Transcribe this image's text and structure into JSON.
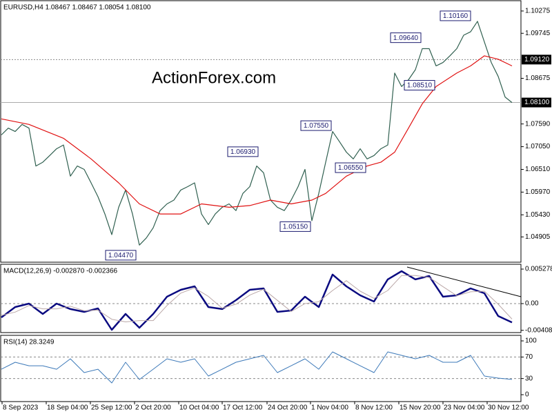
{
  "chart_data": [
    {
      "type": "line",
      "title": "EURUSD,H4  1.08467 1.08467 1.08054 1.08100",
      "watermark": "ActionForex.com",
      "xlim": [
        -0.2,
        75.3
      ],
      "ylim": [
        1.04304,
        1.1052
      ],
      "yticks": [
        1.10275,
        1.09745,
        1.08675,
        {
          "value": 1.0759,
          "label": "1.07590"
        },
        {
          "value": 1.0705,
          "label": "1.07050"
        },
        {
          "value": 1.0651,
          "label": "1.06510"
        },
        {
          "value": 1.0597,
          "label": "1.05970"
        },
        {
          "value": 1.0543,
          "label": "1.05430"
        },
        1.04905
      ],
      "levels": [
        {
          "value": 1.0912,
          "label": "1.09120",
          "style": "dotted"
        },
        {
          "value": 1.081,
          "label": "1.08100",
          "style": "solid"
        }
      ],
      "series": [
        {
          "color": "#2f5f4f",
          "values": [
            1.0733,
            1.0749,
            1.0741,
            1.0758,
            1.0749,
            1.0659,
            1.0668,
            1.0684,
            1.07,
            1.0709,
            1.0635,
            1.0659,
            1.0651,
            1.0619,
            1.0586,
            1.0545,
            1.0496,
            1.0561,
            1.0602,
            1.0545,
            1.0471,
            1.0488,
            1.0512,
            1.0553,
            1.0569,
            1.0578,
            1.0602,
            1.061,
            1.0619,
            1.0545,
            1.052,
            1.0545,
            1.0561,
            1.0569,
            1.0553,
            1.0594,
            1.061,
            1.0659,
            1.0643,
            1.0578,
            1.0561,
            1.0553,
            1.0578,
            1.061,
            1.0651,
            1.0529,
            1.0594,
            1.0668,
            1.0741,
            1.0717,
            1.0692,
            1.0676,
            1.07,
            1.0676,
            1.0684,
            1.07,
            1.0709,
            1.088,
            1.0848,
            1.0864,
            1.0888,
            1.0938,
            1.0938,
            1.0897,
            1.0905,
            1.0921,
            1.0938,
            1.097,
            1.0978,
            1.1003,
            1.0954,
            1.0905,
            1.0872,
            1.0823,
            1.081
          ]
        },
        {
          "color": "#e01010",
          "x": [
            0,
            4,
            9,
            13,
            17,
            20,
            23,
            26,
            29,
            33,
            36,
            39,
            42,
            45,
            47,
            50,
            53,
            55,
            57,
            59,
            61,
            63,
            66,
            68,
            70,
            72,
            74
          ],
          "values": [
            1.0771,
            1.0758,
            1.0725,
            1.0676,
            1.0619,
            1.0569,
            1.0545,
            1.0545,
            1.0569,
            1.0561,
            1.0565,
            1.0578,
            1.0569,
            1.0578,
            1.0594,
            1.0635,
            1.0659,
            1.0668,
            1.0692,
            1.0749,
            1.0807,
            1.0848,
            1.088,
            1.0897,
            1.0921,
            1.0913,
            1.0897
          ]
        }
      ],
      "annotations": [
        {
          "x": 17.3,
          "value": 1.0447,
          "label": "1.04470"
        },
        {
          "x": 35,
          "value": 1.0693,
          "label": "1.06930"
        },
        {
          "x": 42.6,
          "value": 1.0515,
          "label": "1.05150"
        },
        {
          "x": 45.6,
          "value": 1.0755,
          "label": "1.07550"
        },
        {
          "x": 50.6,
          "value": 1.0655,
          "label": "1.06550"
        },
        {
          "x": 60.6,
          "value": 1.0851,
          "label": "1.08510"
        },
        {
          "x": 58.6,
          "value": 1.0964,
          "label": "1.09640"
        },
        {
          "x": 65.8,
          "value": 1.1016,
          "label": "1.10160"
        }
      ]
    },
    {
      "type": "line",
      "title": "MACD(12,26,9) -0.002870 -0.002366",
      "xlim": [
        -0.2,
        75.3
      ],
      "ylim": [
        -0.004435,
        0.006017
      ],
      "yticks": [
        0.005278,
        {
          "value": 0,
          "label": "0.00"
        },
        -0.004087
      ],
      "levels": [
        {
          "value": 0,
          "style": "dashed"
        }
      ],
      "series": [
        {
          "color": "#0a0a80",
          "width": 2.5,
          "x": [
            0,
            2,
            4,
            6,
            8,
            10,
            12,
            14,
            16,
            18,
            20,
            22,
            24,
            26,
            28,
            30,
            32,
            34,
            36,
            38,
            40,
            42,
            44,
            46,
            48,
            50,
            52,
            54,
            56,
            58,
            60,
            62,
            64,
            66,
            68,
            70,
            72,
            74
          ],
          "values": [
            -0.00211,
            -0.00053,
            0,
            -0.00158,
            0,
            -0.00084,
            -0.00127,
            -0.00074,
            -0.00401,
            -0.00158,
            -0.0037,
            -0.00158,
            0.00106,
            0.00211,
            0.00264,
            -0.00053,
            -0.00084,
            0.00053,
            0.00211,
            0.00232,
            -0.00127,
            -0.00106,
            0.00106,
            -0.00053,
            0.00444,
            0.00264,
            0.00127,
            0.00032,
            0.0037,
            0.00496,
            0.0037,
            0.00422,
            0.00106,
            0.00127,
            0.00232,
            0.00158,
            -0.0019,
            -0.00287
          ]
        },
        {
          "color": "#bba8a8",
          "width": 1,
          "x": [
            0,
            2,
            4,
            6,
            8,
            10,
            12,
            14,
            16,
            18,
            20,
            22,
            24,
            26,
            28,
            30,
            32,
            34,
            36,
            38,
            40,
            42,
            44,
            46,
            48,
            50,
            52,
            54,
            56,
            58,
            60,
            62,
            64,
            66,
            68,
            70,
            72,
            74
          ],
          "values": [
            -0.0018,
            -0.0013,
            -0.0003,
            -0.0008,
            -0.0008,
            -0.0004,
            -0.0011,
            -0.001,
            -0.0024,
            -0.0028,
            -0.0026,
            -0.0026,
            -0.0003,
            0.0016,
            0.0024,
            0.0011,
            -0.0007,
            -0.0001,
            0.0013,
            0.0022,
            0.0005,
            -0.0012,
            0,
            0.0003,
            0.002,
            0.0035,
            0.0019,
            0.0008,
            0.002,
            0.0043,
            0.0043,
            0.004,
            0.0026,
            0.0012,
            0.0018,
            0.0019,
            -0.0001,
            -0.002366
          ]
        }
      ]
    },
    {
      "type": "line",
      "title": "RSI(14) 28.3249",
      "xlim": [
        -0.2,
        75.3
      ],
      "ylim": [
        -12.8,
        110.3
      ],
      "yticks": [
        100,
        70,
        30,
        0
      ],
      "levels": [
        {
          "value": 70,
          "style": "dashed"
        },
        {
          "value": 30,
          "style": "dashed"
        }
      ],
      "series": [
        {
          "color": "#3b78b8",
          "width": 1,
          "x": [
            0,
            2,
            4,
            6,
            8,
            10,
            12,
            14,
            16,
            18,
            20,
            22,
            24,
            26,
            28,
            30,
            32,
            34,
            36,
            38,
            40,
            42,
            44,
            46,
            48,
            50,
            52,
            54,
            56,
            58,
            60,
            62,
            64,
            66,
            68,
            70,
            72,
            74
          ],
          "values": [
            47.4,
            60.3,
            53.8,
            53.8,
            47.4,
            66.7,
            41.0,
            47.4,
            21.8,
            60.3,
            28.2,
            47.4,
            66.7,
            60.3,
            66.7,
            34.6,
            47.4,
            60.3,
            66.7,
            73.1,
            41.0,
            53.8,
            66.7,
            47.4,
            79.5,
            66.7,
            53.8,
            41.0,
            79.5,
            73.1,
            66.7,
            73.1,
            60.3,
            60.3,
            73.1,
            34.6,
            30.8,
            28.3249
          ]
        }
      ],
      "xticks": [
        {
          "value": 0.1,
          "label": "8 Sep 2023"
        },
        {
          "value": 6.5,
          "label": "18 Sep 04:00"
        },
        {
          "value": 12.9,
          "label": "25 Sep 12:00"
        },
        {
          "value": 19.3,
          "label": "2 Oct 20:00"
        },
        {
          "value": 25.7,
          "label": "10 Oct 04:00"
        },
        {
          "value": 32,
          "label": "17 Oct 12:00"
        },
        {
          "value": 38.5,
          "label": "24 Oct 20:00"
        },
        {
          "value": 44.8,
          "label": "1 Nov 04:00"
        },
        {
          "value": 51.2,
          "label": "8 Nov 12:00"
        },
        {
          "value": 57.6,
          "label": "15 Nov 20:00"
        },
        {
          "value": 64,
          "label": "23 Nov 04:00"
        },
        {
          "value": 70.4,
          "label": "30 Nov 12:00"
        }
      ]
    }
  ]
}
